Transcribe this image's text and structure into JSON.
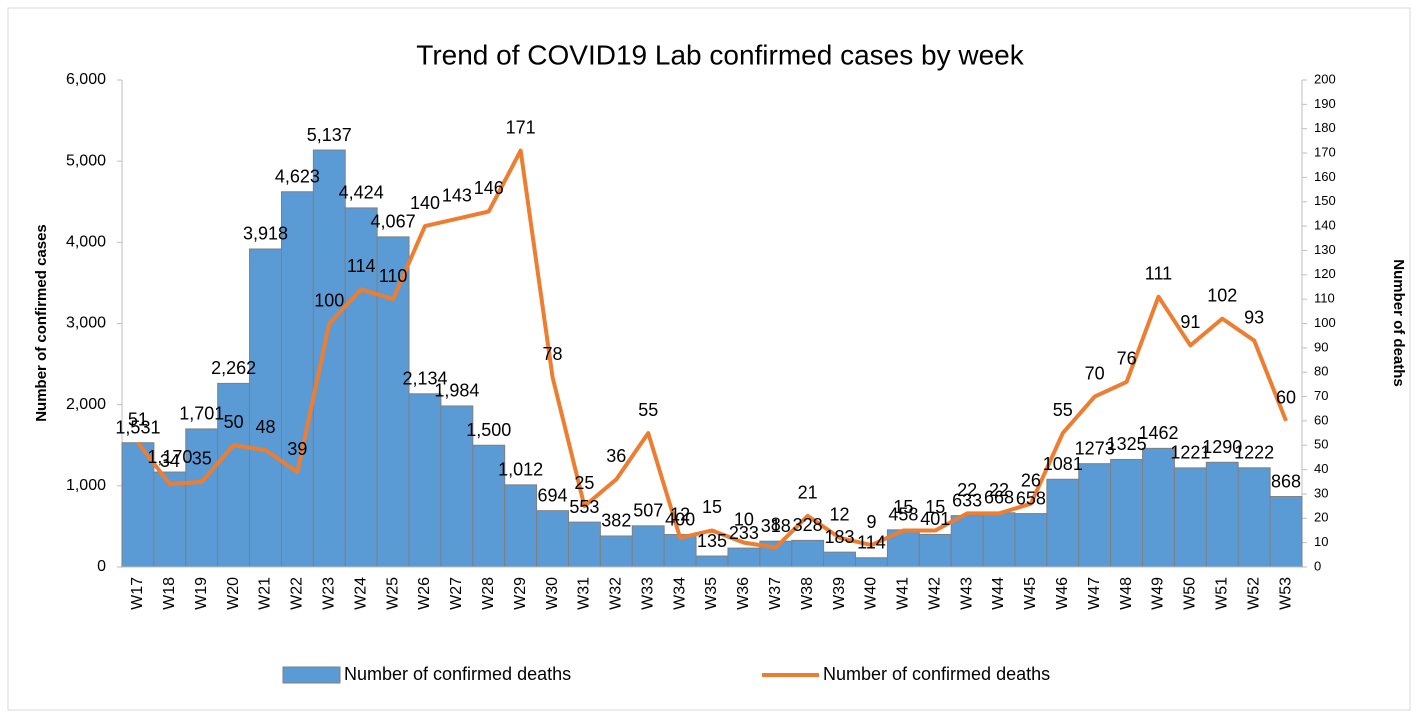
{
  "chart_data": {
    "type": "bar-line",
    "title": "Trend of COVID19 Lab confirmed cases by week",
    "y_label": "Number of confirmed cases",
    "y2_label": "Number of deaths",
    "categories": [
      "W17",
      "W18",
      "W19",
      "W20",
      "W21",
      "W22",
      "W23",
      "W24",
      "W25",
      "W26",
      "W27",
      "W28",
      "W29",
      "W30",
      "W31",
      "W32",
      "W33",
      "W34",
      "W35",
      "W36",
      "W37",
      "W38",
      "W39",
      "W40",
      "W41",
      "W42",
      "W43",
      "W44",
      "W45",
      "W46",
      "W47",
      "W48",
      "W49",
      "W50",
      "W51",
      "W52",
      "W53"
    ],
    "series": [
      {
        "name": "Number of confirmed deaths",
        "type": "bar",
        "color": "#5b9bd5",
        "values": [
          1531,
          1170,
          1701,
          2262,
          3918,
          4623,
          5137,
          4424,
          4067,
          2134,
          1984,
          1500,
          1012,
          694,
          553,
          382,
          507,
          400,
          135,
          233,
          318,
          328,
          183,
          114,
          458,
          401,
          633,
          668,
          658,
          1081,
          1273,
          1325,
          1462,
          1221,
          1290,
          1222,
          868
        ],
        "value_labels": [
          "1,531",
          "1,170",
          "1,701",
          "2,262",
          "3,918",
          "4,623",
          "5,137",
          "4,424",
          "4,067",
          "2,134",
          "1,984",
          "1,500",
          "1,012",
          "694",
          "553",
          "382",
          "507",
          "400",
          "135",
          "233",
          "318",
          "328",
          "183",
          "114",
          "458",
          "401",
          "633",
          "668",
          "658",
          "1081",
          "1273",
          "1325",
          "1462",
          "1221",
          "1290",
          "1222",
          "868"
        ]
      },
      {
        "name": "Number of confirmed deaths",
        "type": "line",
        "axis": "y2",
        "color": "#ed7d31",
        "values": [
          51,
          34,
          35,
          50,
          48,
          39,
          100,
          114,
          110,
          140,
          143,
          146,
          171,
          78,
          25,
          36,
          55,
          12,
          15,
          10,
          8,
          21,
          12,
          9,
          15,
          15,
          22,
          22,
          26,
          55,
          70,
          76,
          111,
          91,
          102,
          93,
          60
        ]
      }
    ],
    "ylim": [
      0,
      6000
    ],
    "yticks": [
      0,
      {
        "value": 1000,
        "label": "1,000"
      },
      {
        "value": 2000,
        "label": "2,000"
      },
      {
        "value": 3000,
        "label": "3,000"
      },
      {
        "value": 4000,
        "label": "4,000"
      },
      {
        "value": 5000,
        "label": "5,000"
      },
      {
        "value": 6000,
        "label": "6,000"
      }
    ],
    "y2lim": [
      0,
      200
    ],
    "y2ticks": [
      0,
      10,
      20,
      30,
      40,
      50,
      60,
      70,
      80,
      90,
      100,
      110,
      120,
      130,
      140,
      150,
      160,
      170,
      180,
      190,
      200
    ],
    "grid": false,
    "legend": "bottom"
  }
}
